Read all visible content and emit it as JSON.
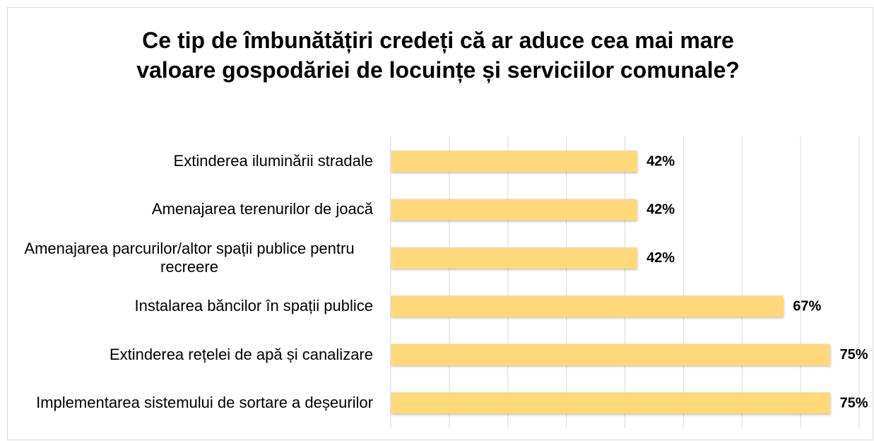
{
  "chart_data": {
    "type": "bar",
    "orientation": "horizontal",
    "title": "Ce tip de îmbunătățiri credeți că ar aduce cea mai mare valoare gospodăriei de locuințe și serviciilor comunale?",
    "categories": [
      "Extinderea iluminării stradale",
      "Amenajarea terenurilor de joacă",
      "Amenajarea parcurilor/altor spații publice pentru recreere",
      "Instalarea băncilor în spații publice",
      "Extinderea rețelei de apă și canalizare",
      "Implementarea sistemului de sortare a deșeurilor"
    ],
    "values": [
      42,
      42,
      42,
      67,
      75,
      75
    ],
    "value_labels": [
      "42%",
      "42%",
      "42%",
      "67%",
      "75%",
      "75%"
    ],
    "color": "#ffd97a",
    "xlim": [
      0,
      80
    ],
    "xticks": [
      0,
      10,
      20,
      30,
      40,
      50,
      60,
      70,
      80
    ],
    "grid": true
  }
}
